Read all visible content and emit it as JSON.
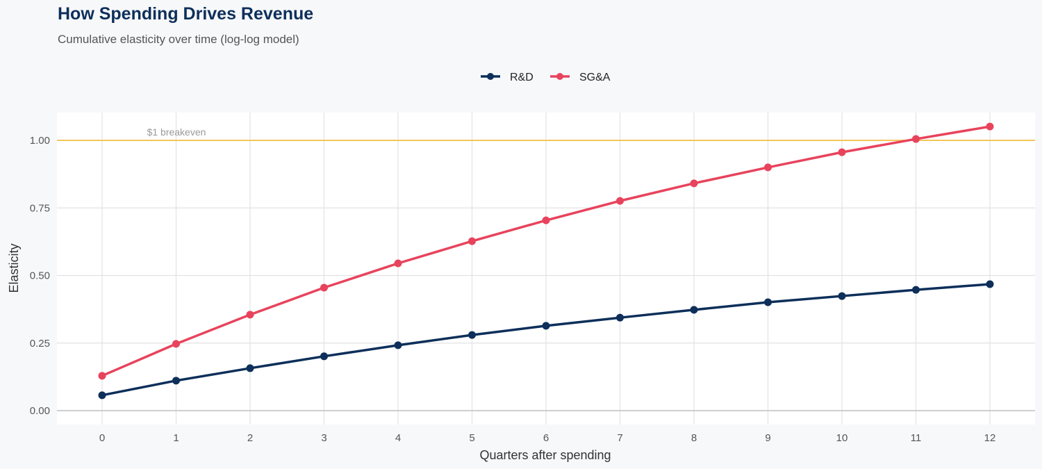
{
  "title": "How Spending Drives Revenue",
  "subtitle": "Cumulative elasticity over time (log-log model)",
  "chart_data": {
    "type": "line",
    "xlabel": "Quarters after spending",
    "ylabel": "Elasticity",
    "x": [
      0,
      1,
      2,
      3,
      4,
      5,
      6,
      7,
      8,
      9,
      10,
      11,
      12
    ],
    "xlim": [
      -0.6,
      12.6
    ],
    "ylim": [
      -0.05,
      1.1
    ],
    "yticks": [
      0,
      0.25,
      0.5,
      0.75,
      1.0
    ],
    "ytick_labels": [
      "0.00",
      "0.25",
      "0.50",
      "0.75",
      "1.00"
    ],
    "xtick_labels": [
      "0",
      "1",
      "2",
      "3",
      "4",
      "5",
      "6",
      "7",
      "8",
      "9",
      "10",
      "11",
      "12"
    ],
    "grid": true,
    "legend_position": "top",
    "series": [
      {
        "name": "R&D",
        "color": "#0d2f5a",
        "values": [
          0.057,
          0.111,
          0.157,
          0.201,
          0.242,
          0.28,
          0.314,
          0.344,
          0.373,
          0.401,
          0.424,
          0.447,
          0.468
        ]
      },
      {
        "name": "SG&A",
        "color": "#e8435c",
        "values": [
          0.129,
          0.247,
          0.355,
          0.455,
          0.545,
          0.627,
          0.704,
          0.776,
          0.841,
          0.9,
          0.956,
          1.005,
          1.051
        ]
      }
    ],
    "reference_line": {
      "y": 1.0,
      "label": "$1 breakeven",
      "color": "#f5c55a"
    }
  }
}
